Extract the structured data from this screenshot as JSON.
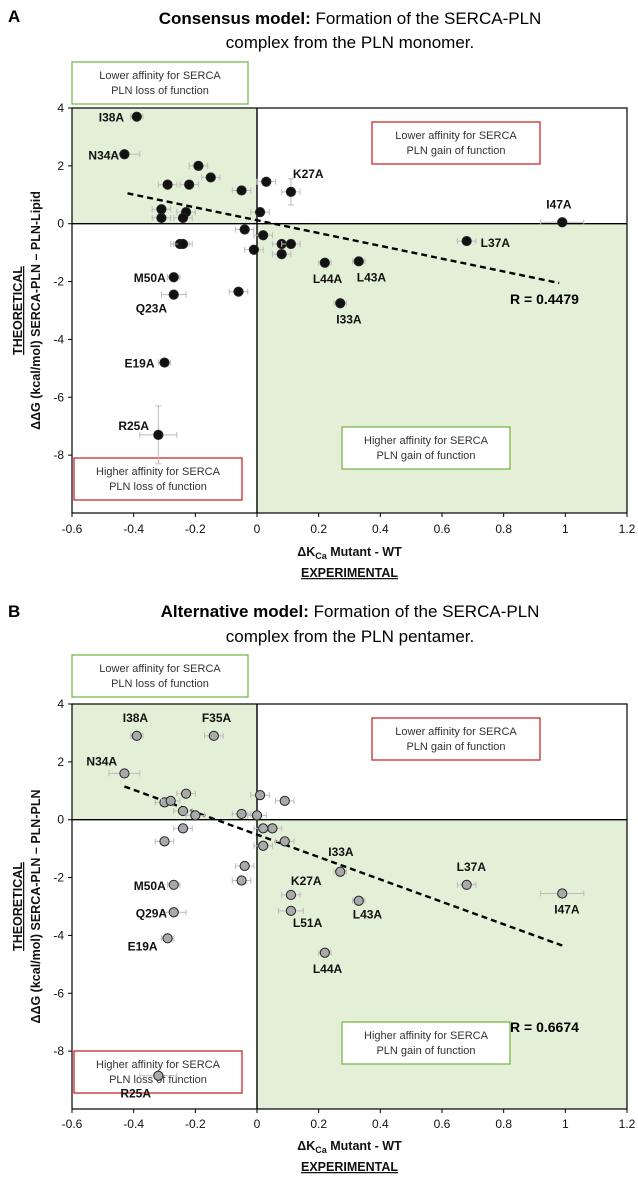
{
  "chart_data": [
    {
      "type": "scatter",
      "panel": "A",
      "title_bold": "Consensus model:",
      "title_rest": " Formation of the SERCA-PLN",
      "title_line2": "complex from the PLN monomer.",
      "xlabel_main": "ΔK",
      "xlabel_sub": "Ca",
      "xlabel_rest": " Mutant - WT",
      "xlabel_line2": "EXPERIMENTAL",
      "ylabel_line1": "THEORETICAL",
      "ylabel_line2": "ΔΔG (kcal/mol) SERCA-PLN – PLN-Lipid",
      "xlim": [
        -0.6,
        1.2
      ],
      "ylim": [
        -10,
        4
      ],
      "xticks": [
        "-0.6",
        "-0.4",
        "-0.2",
        "0",
        "0.2",
        "0.4",
        "0.6",
        "0.8",
        "1",
        "1.2"
      ],
      "yticks": [
        "4",
        "2",
        "0",
        "-2",
        "-4",
        "-6",
        "-8"
      ],
      "point_fill": "#111111",
      "region_fill": "#e4efd8",
      "points": [
        {
          "x": -0.39,
          "y": 3.7,
          "label": "I38A",
          "xerr": 0.02,
          "yerr": 0.1
        },
        {
          "x": -0.43,
          "y": 2.4,
          "label": "N34A",
          "xerr": 0.05,
          "yerr": 0.1
        },
        {
          "x": -0.29,
          "y": 1.35,
          "label": "",
          "xerr": 0.03,
          "yerr": 0.1
        },
        {
          "x": -0.22,
          "y": 1.35,
          "label": "",
          "xerr": 0.03,
          "yerr": 0.1
        },
        {
          "x": -0.19,
          "y": 2.0,
          "label": "",
          "xerr": 0.03,
          "yerr": 0.1
        },
        {
          "x": -0.15,
          "y": 1.6,
          "label": "",
          "xerr": 0.03,
          "yerr": 0.1
        },
        {
          "x": -0.05,
          "y": 1.15,
          "label": "",
          "xerr": 0.03,
          "yerr": 0.1
        },
        {
          "x": 0.03,
          "y": 1.45,
          "label": "",
          "xerr": 0.03,
          "yerr": 0.1
        },
        {
          "x": 0.11,
          "y": 1.1,
          "label": "K27A",
          "xerr": 0.03,
          "yerr": 0.45
        },
        {
          "x": -0.31,
          "y": 0.5,
          "label": "",
          "xerr": 0.03,
          "yerr": 0.1
        },
        {
          "x": -0.31,
          "y": 0.2,
          "label": "",
          "xerr": 0.03,
          "yerr": 0.1
        },
        {
          "x": -0.23,
          "y": 0.4,
          "label": "",
          "xerr": 0.03,
          "yerr": 0.1
        },
        {
          "x": -0.24,
          "y": 0.2,
          "label": "",
          "xerr": 0.03,
          "yerr": 0.1
        },
        {
          "x": 0.01,
          "y": 0.4,
          "label": "",
          "xerr": 0.03,
          "yerr": 0.1
        },
        {
          "x": -0.25,
          "y": -0.7,
          "label": "",
          "xerr": 0.03,
          "yerr": 0.1
        },
        {
          "x": -0.24,
          "y": -0.7,
          "label": "",
          "xerr": 0.03,
          "yerr": 0.1
        },
        {
          "x": -0.04,
          "y": -0.2,
          "label": "",
          "xerr": 0.03,
          "yerr": 0.1
        },
        {
          "x": 0.02,
          "y": -0.4,
          "label": "",
          "xerr": 0.03,
          "yerr": 0.1
        },
        {
          "x": -0.01,
          "y": -0.9,
          "label": "",
          "xerr": 0.03,
          "yerr": 0.1
        },
        {
          "x": 0.08,
          "y": -0.7,
          "label": "",
          "xerr": 0.03,
          "yerr": 0.1
        },
        {
          "x": 0.11,
          "y": -0.7,
          "label": "",
          "xerr": 0.03,
          "yerr": 0.1
        },
        {
          "x": 0.08,
          "y": -1.05,
          "label": "",
          "xerr": 0.03,
          "yerr": 0.1
        },
        {
          "x": 0.22,
          "y": -1.35,
          "label": "L44A",
          "xerr": 0.02,
          "yerr": 0.1
        },
        {
          "x": 0.33,
          "y": -1.3,
          "label": "L43A",
          "xerr": 0.02,
          "yerr": 0.1
        },
        {
          "x": 0.27,
          "y": -2.75,
          "label": "I33A",
          "xerr": 0.02,
          "yerr": 0.1
        },
        {
          "x": -0.27,
          "y": -1.85,
          "label": "M50A",
          "xerr": 0.02,
          "yerr": 0.1
        },
        {
          "x": -0.27,
          "y": -2.45,
          "label": "Q23A",
          "xerr": 0.04,
          "yerr": 0.1
        },
        {
          "x": -0.06,
          "y": -2.35,
          "label": "",
          "xerr": 0.03,
          "yerr": 0.1
        },
        {
          "x": -0.3,
          "y": -4.8,
          "label": "E19A",
          "xerr": 0.02,
          "yerr": 0.1
        },
        {
          "x": -0.32,
          "y": -7.3,
          "label": "R25A",
          "xerr": 0.06,
          "yerr": 1.0
        },
        {
          "x": 0.68,
          "y": -0.6,
          "label": "L37A",
          "xerr": 0.03,
          "yerr": 0.1
        },
        {
          "x": 0.99,
          "y": 0.05,
          "label": "I47A",
          "xerr": 0.07,
          "yerr": 0.1
        }
      ],
      "trendline": {
        "x1": -0.42,
        "y1": 1.05,
        "x2": 0.98,
        "y2": -2.05
      },
      "r_label": "R = 0.4479",
      "boxes": {
        "top_left": [
          "Lower affinity for SERCA",
          "PLN loss of function"
        ],
        "top_right": [
          "Lower affinity for SERCA",
          "PLN gain of function"
        ],
        "bottom_right": [
          "Higher affinity for SERCA",
          "PLN gain of function"
        ],
        "bottom_left": [
          "Higher affinity for SERCA",
          "PLN loss of function"
        ]
      }
    },
    {
      "type": "scatter",
      "panel": "B",
      "title_bold": "Alternative model:",
      "title_rest": " Formation of the SERCA-PLN",
      "title_line2": "complex from the PLN pentamer.",
      "xlabel_main": "ΔK",
      "xlabel_sub": "Ca",
      "xlabel_rest": " Mutant - WT",
      "xlabel_line2": "EXPERIMENTAL",
      "ylabel_line1": "THEORETICAL",
      "ylabel_line2": "ΔΔG (kcal/mol) SERCA-PLN – PLN-PLN",
      "xlim": [
        -0.6,
        1.2
      ],
      "ylim": [
        -10,
        4
      ],
      "xticks": [
        "-0.6",
        "-0.4",
        "-0.2",
        "0",
        "0.2",
        "0.4",
        "0.6",
        "0.8",
        "1",
        "1.2"
      ],
      "yticks": [
        "4",
        "2",
        "0",
        "-2",
        "-4",
        "-6",
        "-8"
      ],
      "point_fill": "#a9a9a9",
      "region_fill": "#e4efd8",
      "points": [
        {
          "x": -0.39,
          "y": 2.9,
          "label": "I38A",
          "xerr": 0.02,
          "yerr": 0.1
        },
        {
          "x": -0.14,
          "y": 2.9,
          "label": "F35A",
          "xerr": 0.03,
          "yerr": 0.1
        },
        {
          "x": -0.43,
          "y": 1.6,
          "label": "N34A",
          "xerr": 0.05,
          "yerr": 0.1
        },
        {
          "x": -0.3,
          "y": 0.6,
          "label": "",
          "xerr": 0.03,
          "yerr": 0.1
        },
        {
          "x": -0.28,
          "y": 0.65,
          "label": "",
          "xerr": 0.03,
          "yerr": 0.1
        },
        {
          "x": -0.23,
          "y": 0.9,
          "label": "",
          "xerr": 0.03,
          "yerr": 0.1
        },
        {
          "x": -0.24,
          "y": 0.3,
          "label": "",
          "xerr": 0.03,
          "yerr": 0.1
        },
        {
          "x": -0.2,
          "y": 0.15,
          "label": "",
          "xerr": 0.03,
          "yerr": 0.1
        },
        {
          "x": -0.24,
          "y": -0.3,
          "label": "",
          "xerr": 0.03,
          "yerr": 0.1
        },
        {
          "x": -0.05,
          "y": 0.2,
          "label": "",
          "xerr": 0.03,
          "yerr": 0.1
        },
        {
          "x": 0.01,
          "y": 0.85,
          "label": "",
          "xerr": 0.03,
          "yerr": 0.1
        },
        {
          "x": 0.09,
          "y": 0.65,
          "label": "",
          "xerr": 0.03,
          "yerr": 0.1
        },
        {
          "x": 0.0,
          "y": 0.15,
          "label": "",
          "xerr": 0.03,
          "yerr": 0.1
        },
        {
          "x": 0.02,
          "y": -0.3,
          "label": "",
          "xerr": 0.03,
          "yerr": 0.1
        },
        {
          "x": 0.05,
          "y": -0.3,
          "label": "",
          "xerr": 0.03,
          "yerr": 0.1
        },
        {
          "x": 0.02,
          "y": -0.9,
          "label": "",
          "xerr": 0.03,
          "yerr": 0.1
        },
        {
          "x": 0.09,
          "y": -0.75,
          "label": "",
          "xerr": 0.03,
          "yerr": 0.1
        },
        {
          "x": -0.3,
          "y": -0.75,
          "label": "",
          "xerr": 0.03,
          "yerr": 0.1
        },
        {
          "x": -0.04,
          "y": -1.6,
          "label": "",
          "xerr": 0.03,
          "yerr": 0.1
        },
        {
          "x": -0.05,
          "y": -2.1,
          "label": "",
          "xerr": 0.03,
          "yerr": 0.1
        },
        {
          "x": 0.27,
          "y": -1.8,
          "label": "I33A",
          "xerr": 0.02,
          "yerr": 0.1
        },
        {
          "x": 0.11,
          "y": -2.6,
          "label": "K27A",
          "xerr": 0.03,
          "yerr": 0.1
        },
        {
          "x": 0.11,
          "y": -3.15,
          "label": "L51A",
          "xerr": 0.04,
          "yerr": 0.1
        },
        {
          "x": 0.33,
          "y": -2.8,
          "label": "L43A",
          "xerr": 0.02,
          "yerr": 0.1
        },
        {
          "x": 0.22,
          "y": -4.6,
          "label": "L44A",
          "xerr": 0.02,
          "yerr": 0.1
        },
        {
          "x": -0.27,
          "y": -2.25,
          "label": "M50A",
          "xerr": 0.02,
          "yerr": 0.1
        },
        {
          "x": -0.27,
          "y": -3.2,
          "label": "Q29A",
          "xerr": 0.04,
          "yerr": 0.1
        },
        {
          "x": -0.29,
          "y": -4.1,
          "label": "E19A",
          "xerr": 0.02,
          "yerr": 0.1
        },
        {
          "x": -0.32,
          "y": -8.85,
          "label": "R25A",
          "xerr": 0.06,
          "yerr": 0.1
        },
        {
          "x": 0.68,
          "y": -2.25,
          "label": "L37A",
          "xerr": 0.03,
          "yerr": 0.1
        },
        {
          "x": 0.99,
          "y": -2.55,
          "label": "I47A",
          "xerr": 0.07,
          "yerr": 0.1
        }
      ],
      "trendline": {
        "x1": -0.43,
        "y1": 1.15,
        "x2": 0.99,
        "y2": -4.35
      },
      "r_label": "R = 0.6674",
      "boxes": {
        "top_left": [
          "Lower affinity for SERCA",
          "PLN loss of function"
        ],
        "top_right": [
          "Lower affinity for SERCA",
          "PLN gain of function"
        ],
        "bottom_right": [
          "Higher affinity for SERCA",
          "PLN gain of function"
        ],
        "bottom_left": [
          "Higher affinity for SERCA",
          "PLN loss of function"
        ]
      }
    }
  ],
  "colors": {
    "green_border": "#79b94b",
    "red_border": "#cc2a2a",
    "error_bar": "#bbbbbb"
  }
}
